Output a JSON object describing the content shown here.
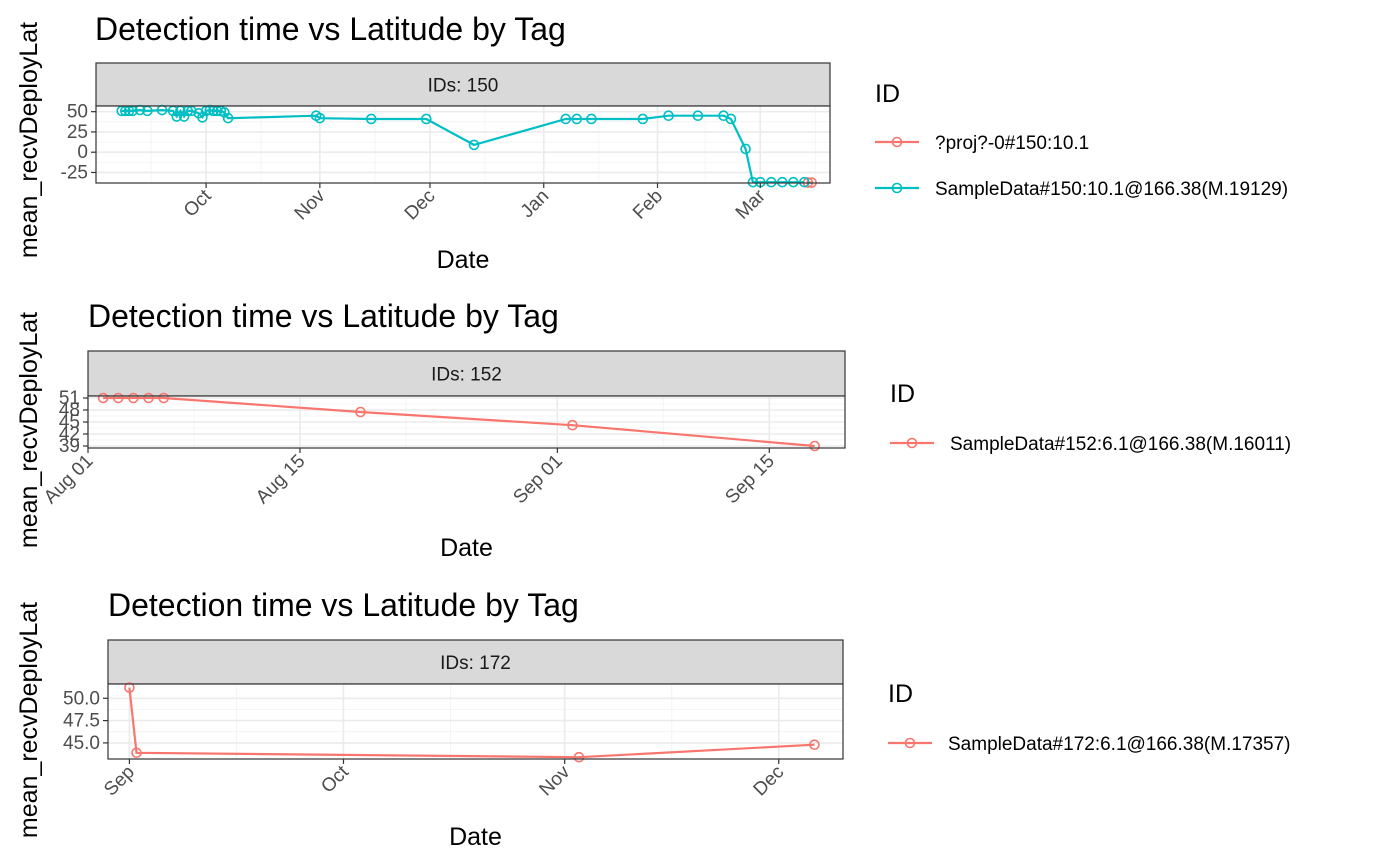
{
  "y_axis_label": "mean_recvDeployLat",
  "chart_data": [
    {
      "type": "line",
      "title": "Detection time vs Latitude by Tag",
      "strip": "IDs: 150",
      "xlabel": "Date",
      "ylabel": "mean_recvDeployLat",
      "x_ticks": [
        "Oct",
        "Nov",
        "Dec",
        "Jan",
        "Feb",
        "Mar"
      ],
      "x_range": [
        "2016-09-01",
        "2017-03-20"
      ],
      "y_ticks": [
        "50",
        "25",
        "0",
        "-25"
      ],
      "ylim": [
        -38,
        57
      ],
      "legend_title": "ID",
      "series": [
        {
          "name": "?proj?-0#150:10.1",
          "color": "#F8766D",
          "points": [
            [
              "2017-03-14",
              -37.5
            ],
            [
              "2017-03-15",
              -37.5
            ]
          ]
        },
        {
          "name": "SampleData#150:10.1@166.38(M.19129)",
          "color": "#00BFC4",
          "points": [
            [
              "2016-09-08",
              51
            ],
            [
              "2016-09-09",
              51
            ],
            [
              "2016-09-10",
              51
            ],
            [
              "2016-09-11",
              51
            ],
            [
              "2016-09-13",
              52
            ],
            [
              "2016-09-15",
              51
            ],
            [
              "2016-09-19",
              52
            ],
            [
              "2016-09-22",
              51
            ],
            [
              "2016-09-23",
              44
            ],
            [
              "2016-09-24",
              51
            ],
            [
              "2016-09-25",
              44
            ],
            [
              "2016-09-26",
              51
            ],
            [
              "2016-09-27",
              51
            ],
            [
              "2016-09-29",
              48
            ],
            [
              "2016-09-30",
              43
            ],
            [
              "2016-10-01",
              51
            ],
            [
              "2016-10-02",
              52
            ],
            [
              "2016-10-03",
              51
            ],
            [
              "2016-10-04",
              51
            ],
            [
              "2016-10-05",
              51
            ],
            [
              "2016-10-06",
              49
            ],
            [
              "2016-10-07",
              42
            ],
            [
              "2016-10-31",
              45
            ],
            [
              "2016-11-01",
              42
            ],
            [
              "2016-11-15",
              41
            ],
            [
              "2016-11-30",
              41
            ],
            [
              "2016-12-13",
              9
            ],
            [
              "2017-01-07",
              41
            ],
            [
              "2017-01-10",
              41
            ],
            [
              "2017-01-14",
              41
            ],
            [
              "2017-01-28",
              41
            ],
            [
              "2017-02-04",
              45
            ],
            [
              "2017-02-12",
              45
            ],
            [
              "2017-02-19",
              45
            ],
            [
              "2017-02-21",
              41
            ],
            [
              "2017-02-25",
              4
            ],
            [
              "2017-02-27",
              -37
            ],
            [
              "2017-03-01",
              -37
            ],
            [
              "2017-03-04",
              -37
            ],
            [
              "2017-03-07",
              -37
            ],
            [
              "2017-03-10",
              -37
            ],
            [
              "2017-03-13",
              -37
            ]
          ]
        }
      ]
    },
    {
      "type": "line",
      "title": "Detection time vs Latitude by Tag",
      "strip": "IDs: 152",
      "xlabel": "Date",
      "ylabel": "mean_recvDeployLat",
      "x_ticks": [
        "Aug 01",
        "Aug 15",
        "Sep 01",
        "Sep 15"
      ],
      "x_range": [
        "2016-08-01",
        "2016-09-20"
      ],
      "y_ticks": [
        "51",
        "48",
        "45",
        "42",
        "39"
      ],
      "ylim": [
        38.5,
        51.5
      ],
      "legend_title": "ID",
      "series": [
        {
          "name": "SampleData#152:6.1@166.38(M.16011)",
          "color": "#F8766D",
          "points": [
            [
              "2016-08-02",
              51
            ],
            [
              "2016-08-03",
              51
            ],
            [
              "2016-08-04",
              51
            ],
            [
              "2016-08-05",
              51
            ],
            [
              "2016-08-06",
              51
            ],
            [
              "2016-08-19",
              47.5
            ],
            [
              "2016-09-02",
              44.2
            ],
            [
              "2016-09-18",
              39
            ]
          ]
        }
      ]
    },
    {
      "type": "line",
      "title": "Detection time vs Latitude by Tag",
      "strip": "IDs: 172",
      "xlabel": "Date",
      "ylabel": "mean_recvDeployLat",
      "x_ticks": [
        "Sep",
        "Oct",
        "Nov",
        "Dec"
      ],
      "x_range": [
        "2016-08-29",
        "2016-12-10"
      ],
      "y_ticks": [
        "50.0",
        "47.5",
        "45.0"
      ],
      "ylim": [
        43.2,
        51.6
      ],
      "legend_title": "ID",
      "series": [
        {
          "name": "SampleData#172:6.1@166.38(M.17357)",
          "color": "#F8766D",
          "points": [
            [
              "2016-09-01",
              51.2
            ],
            [
              "2016-09-02",
              43.9
            ],
            [
              "2016-11-03",
              43.4
            ],
            [
              "2016-12-06",
              44.8
            ]
          ]
        }
      ]
    }
  ]
}
